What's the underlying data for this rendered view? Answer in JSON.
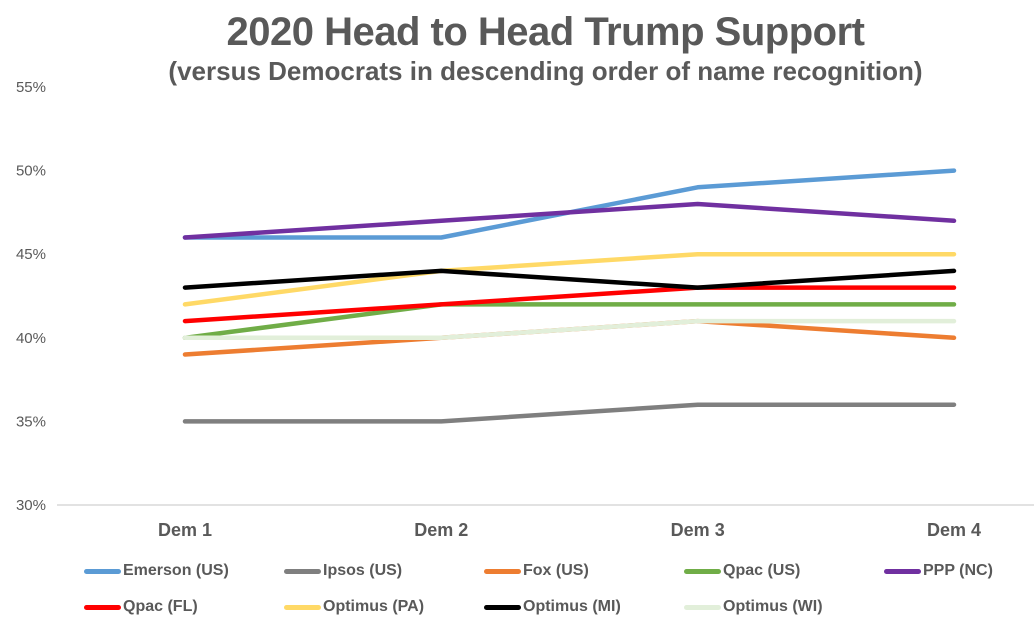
{
  "chart_data": {
    "type": "line",
    "title": "2020 Head to Head Trump Support",
    "subtitle": "(versus Democrats in descending order of name recognition)",
    "categories": [
      "Dem 1",
      "Dem 2",
      "Dem 3",
      "Dem 4"
    ],
    "series": [
      {
        "name": "Emerson (US)",
        "color": "#5B9BD5",
        "values": [
          46,
          46,
          49,
          50
        ]
      },
      {
        "name": "Ipsos (US)",
        "color": "#7F7F7F",
        "values": [
          35,
          35,
          36,
          36
        ]
      },
      {
        "name": "Fox (US)",
        "color": "#ED7D31",
        "values": [
          39,
          40,
          41,
          40
        ]
      },
      {
        "name": "Qpac (US)",
        "color": "#70AD47",
        "values": [
          40,
          42,
          42,
          42
        ]
      },
      {
        "name": "PPP (NC)",
        "color": "#7030A0",
        "values": [
          46,
          47,
          48,
          47
        ]
      },
      {
        "name": "Qpac (FL)",
        "color": "#FF0000",
        "values": [
          41,
          42,
          43,
          43
        ]
      },
      {
        "name": "Optimus (PA)",
        "color": "#FFD966",
        "values": [
          42,
          44,
          45,
          45
        ]
      },
      {
        "name": "Optimus (MI)",
        "color": "#000000",
        "values": [
          43,
          44,
          43,
          44
        ]
      },
      {
        "name": "Optimus (WI)",
        "color": "#E2EFDA",
        "values": [
          40,
          40,
          41,
          41
        ]
      }
    ],
    "ylim": [
      30,
      55
    ],
    "ytick_labels": [
      "55%",
      "50%",
      "45%",
      "40%",
      "35%",
      "30%"
    ],
    "ytick_values": [
      55,
      50,
      45,
      40,
      35,
      30
    ],
    "grid": "off",
    "baseline_tick": "30%",
    "legend_position": "bottom",
    "text_color": "#595959",
    "axis_line_color": "#D9D9D9"
  }
}
